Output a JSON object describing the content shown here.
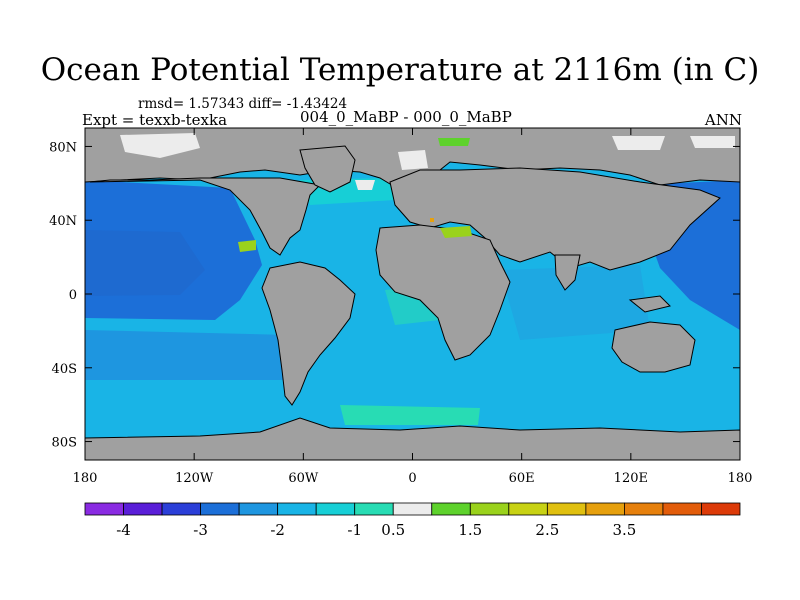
{
  "title": "Ocean Potential Temperature at 2116m (in C)",
  "stats": "rmsd= 1.57343 diff= -1.43424",
  "experiment": "Expt = texxb-texka",
  "case_label": "004_0_MaBP - 000_0_MaBP",
  "season": "ANN",
  "map": {
    "projection": "cylindrical equidistant",
    "lon_range": [
      -180,
      180
    ],
    "lat_range": [
      -90,
      90
    ],
    "land_color": "#a0a0a0",
    "coastline_color": "#000000",
    "lat_ticks": [
      {
        "value": 80,
        "label": "80N"
      },
      {
        "value": 40,
        "label": "40N"
      },
      {
        "value": 0,
        "label": "0"
      },
      {
        "value": -40,
        "label": "40S"
      },
      {
        "value": -80,
        "label": "80S"
      }
    ],
    "lon_ticks": [
      {
        "value": -180,
        "label": "180"
      },
      {
        "value": -120,
        "label": "120W"
      },
      {
        "value": -60,
        "label": "60W"
      },
      {
        "value": 0,
        "label": "0"
      },
      {
        "value": 60,
        "label": "60E"
      },
      {
        "value": 120,
        "label": "120E"
      },
      {
        "value": 180,
        "label": "180"
      }
    ]
  },
  "colorbar": {
    "colors": [
      "#8a2be2",
      "#5a1ed8",
      "#2b3fd8",
      "#1c6fd8",
      "#1e96e0",
      "#19b4e6",
      "#17cfd6",
      "#28dcb4",
      "#ececec",
      "#5ed22c",
      "#9ad21c",
      "#c8d214",
      "#e0c010",
      "#e6a00e",
      "#e6800c",
      "#e25c0a",
      "#dc3a08"
    ],
    "labels": [
      {
        "after_box": 1,
        "text": "-4"
      },
      {
        "after_box": 3,
        "text": "-3"
      },
      {
        "after_box": 5,
        "text": "-2"
      },
      {
        "after_box": 7,
        "text": "-1"
      },
      {
        "after_box": 8,
        "text": "0.5"
      },
      {
        "after_box": 10,
        "text": "1.5"
      },
      {
        "after_box": 12,
        "text": "2.5"
      },
      {
        "after_box": 14,
        "text": "3.5"
      }
    ]
  }
}
